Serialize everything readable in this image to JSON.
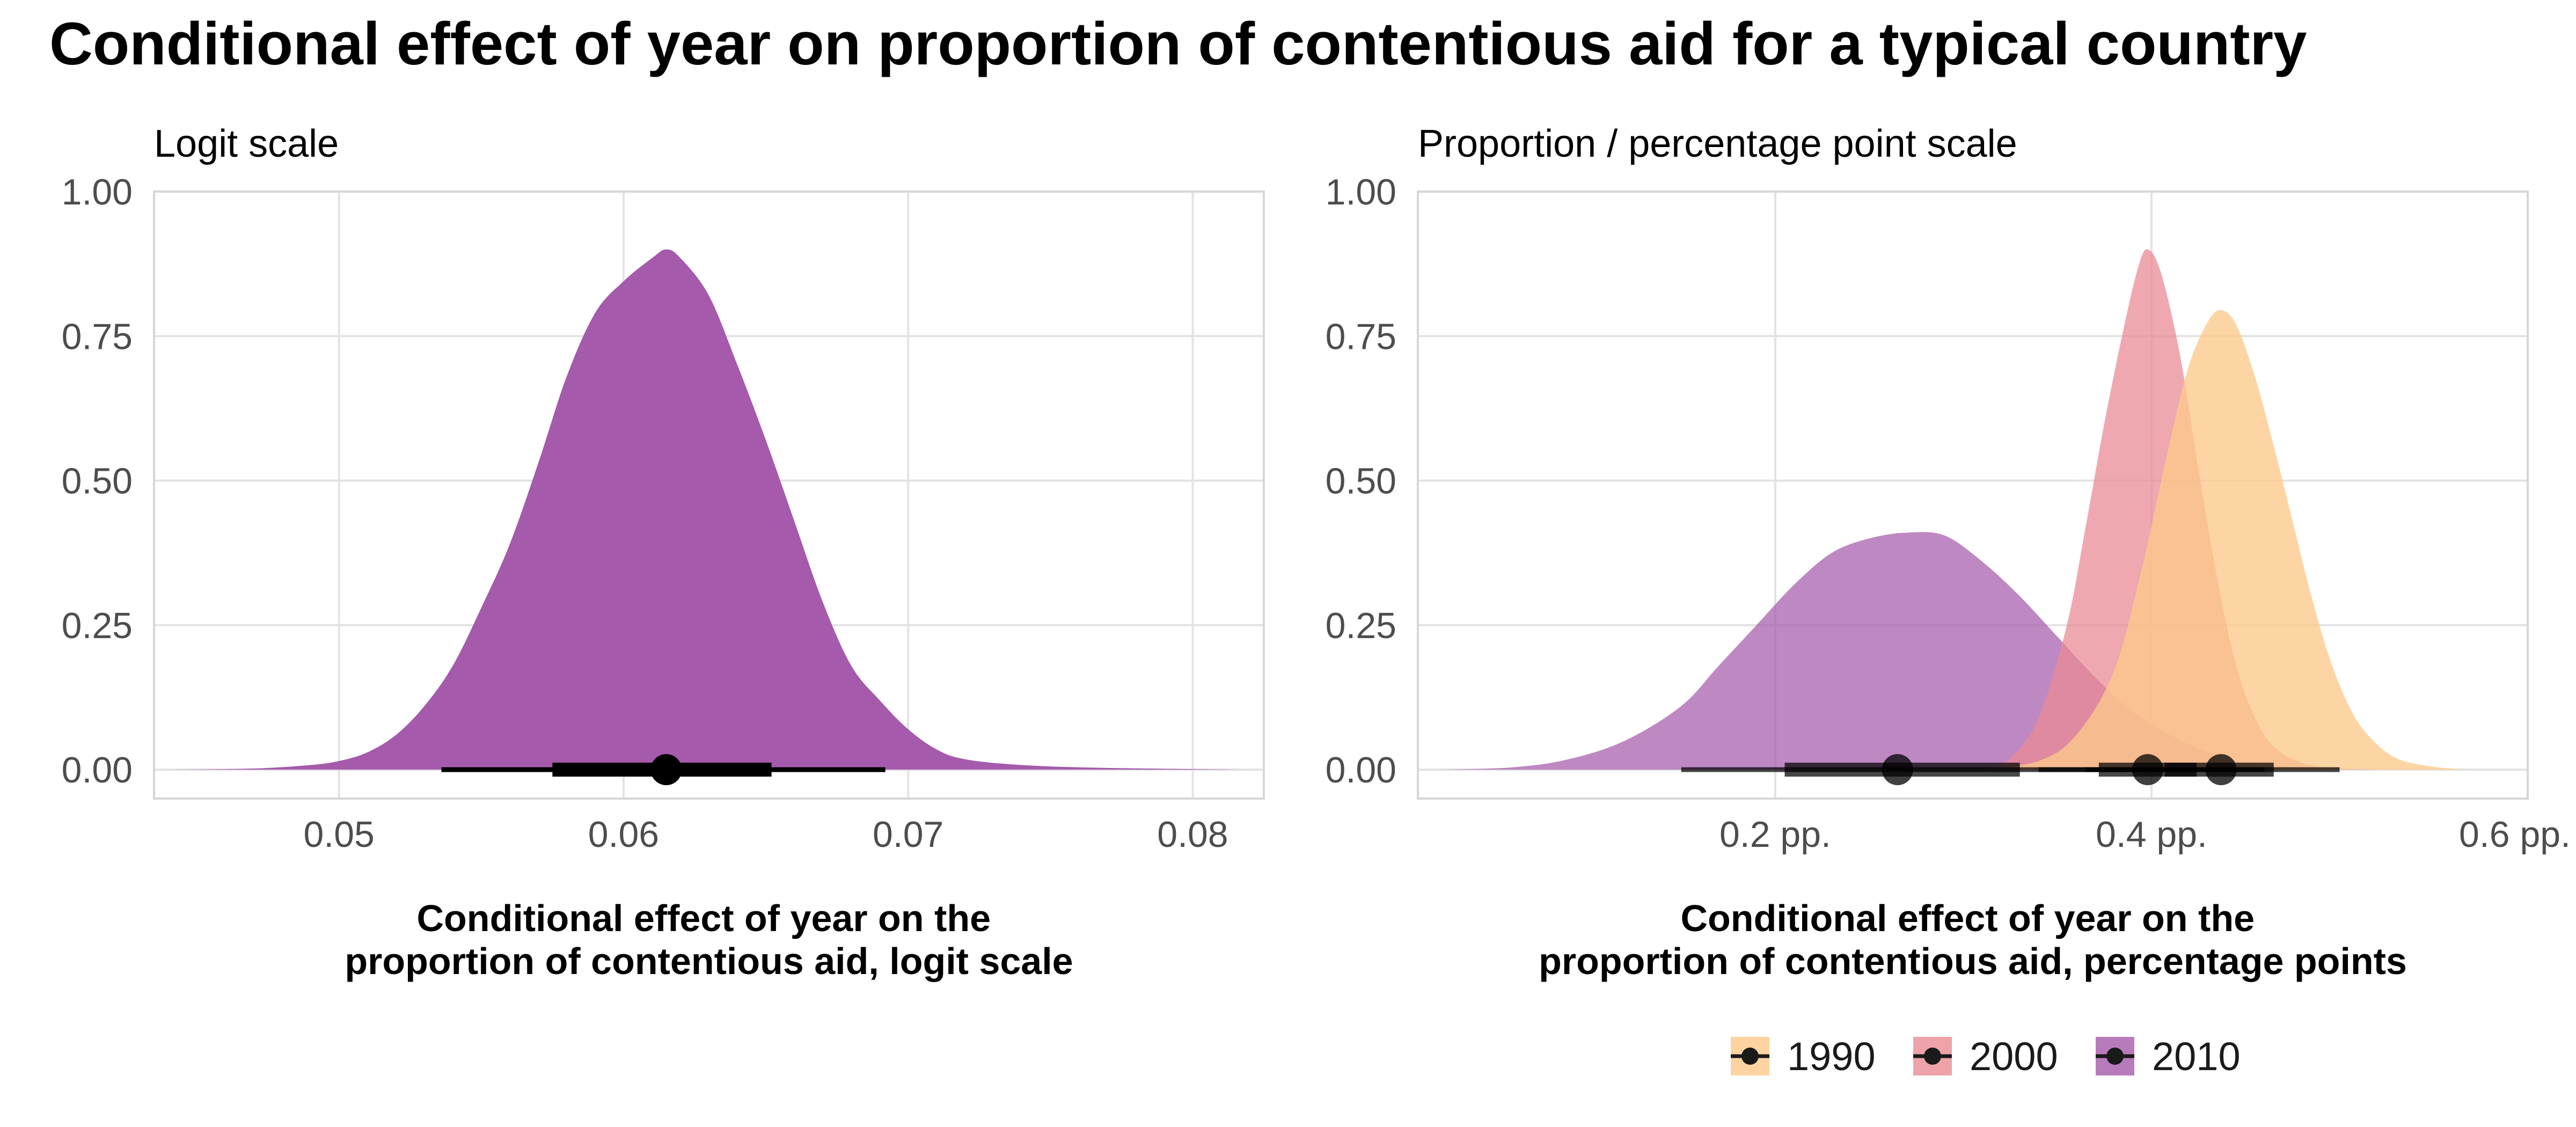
{
  "title": "Conditional effect of year on proportion of contentious aid for a typical country",
  "chart_data": [
    {
      "type": "area",
      "subtitle": "Logit scale",
      "xlabel_lines": [
        "Conditional effect of year on the",
        "proportion of contentious aid, logit scale"
      ],
      "xlim": [
        0.0435,
        0.0825
      ],
      "ylim": [
        -0.05,
        1.0
      ],
      "x_ticks": [
        0.05,
        0.06,
        0.07,
        0.08
      ],
      "x_tick_labels": [
        "0.05",
        "0.06",
        "0.07",
        "0.08"
      ],
      "y_ticks": [
        0,
        0.25,
        0.5,
        0.75,
        1.0
      ],
      "y_tick_labels": [
        "0.00",
        "0.25",
        "0.50",
        "0.75",
        "1.00"
      ],
      "grid": true,
      "series": [
        {
          "key": "logit",
          "color": "#a55aab",
          "opacity": 1.0,
          "density": [
            [
              0.044,
              0
            ],
            [
              0.047,
              0.002
            ],
            [
              0.049,
              0.008
            ],
            [
              0.05,
              0.015
            ],
            [
              0.051,
              0.03
            ],
            [
              0.052,
              0.06
            ],
            [
              0.053,
              0.11
            ],
            [
              0.054,
              0.18
            ],
            [
              0.055,
              0.28
            ],
            [
              0.056,
              0.39
            ],
            [
              0.057,
              0.53
            ],
            [
              0.058,
              0.68
            ],
            [
              0.059,
              0.79
            ],
            [
              0.06,
              0.845
            ],
            [
              0.061,
              0.885
            ],
            [
              0.0615,
              0.9
            ],
            [
              0.062,
              0.885
            ],
            [
              0.063,
              0.82
            ],
            [
              0.064,
              0.7
            ],
            [
              0.065,
              0.57
            ],
            [
              0.066,
              0.43
            ],
            [
              0.067,
              0.29
            ],
            [
              0.068,
              0.18
            ],
            [
              0.069,
              0.12
            ],
            [
              0.07,
              0.07
            ],
            [
              0.071,
              0.035
            ],
            [
              0.072,
              0.018
            ],
            [
              0.074,
              0.008
            ],
            [
              0.077,
              0.003
            ],
            [
              0.082,
              0
            ]
          ],
          "median": 0.0615,
          "interval_66": [
            0.0575,
            0.0652
          ],
          "interval_95": [
            0.0536,
            0.0692
          ]
        }
      ]
    },
    {
      "type": "area",
      "subtitle": "Proportion / percentage point scale",
      "xlabel_lines": [
        "Conditional effect of year on the",
        "proportion of contentious aid, percentage points"
      ],
      "xlim": [
        0.01,
        0.6
      ],
      "ylim": [
        -0.05,
        1.0
      ],
      "x_ticks": [
        0.2,
        0.4,
        0.6
      ],
      "x_tick_labels": [
        "0.2 pp.",
        "0.4 pp.",
        "0.6 pp."
      ],
      "y_ticks": [
        0,
        0.25,
        0.5,
        0.75,
        1.0
      ],
      "y_tick_labels": [
        "0.00",
        "0.25",
        "0.50",
        "0.75",
        "1.00"
      ],
      "grid": true,
      "series": [
        {
          "key": "2010",
          "color": "#a55aab",
          "opacity": 0.72,
          "density": [
            [
              0.02,
              0
            ],
            [
              0.06,
              0.004
            ],
            [
              0.09,
              0.018
            ],
            [
              0.12,
              0.05
            ],
            [
              0.15,
              0.11
            ],
            [
              0.17,
              0.18
            ],
            [
              0.19,
              0.25
            ],
            [
              0.21,
              0.32
            ],
            [
              0.23,
              0.375
            ],
            [
              0.25,
              0.4
            ],
            [
              0.27,
              0.41
            ],
            [
              0.29,
              0.405
            ],
            [
              0.31,
              0.36
            ],
            [
              0.33,
              0.3
            ],
            [
              0.35,
              0.23
            ],
            [
              0.37,
              0.16
            ],
            [
              0.39,
              0.1
            ],
            [
              0.41,
              0.06
            ],
            [
              0.43,
              0.03
            ],
            [
              0.45,
              0.012
            ],
            [
              0.48,
              0.004
            ],
            [
              0.52,
              0
            ]
          ],
          "median": 0.265,
          "interval_66": [
            0.205,
            0.33
          ],
          "interval_95": [
            0.15,
            0.385
          ]
        },
        {
          "key": "2000",
          "color": "#ea8b95",
          "opacity": 0.75,
          "density": [
            [
              0.31,
              0
            ],
            [
              0.325,
              0.02
            ],
            [
              0.34,
              0.09
            ],
            [
              0.355,
              0.25
            ],
            [
              0.365,
              0.42
            ],
            [
              0.375,
              0.6
            ],
            [
              0.385,
              0.76
            ],
            [
              0.393,
              0.87
            ],
            [
              0.398,
              0.9
            ],
            [
              0.405,
              0.86
            ],
            [
              0.415,
              0.72
            ],
            [
              0.425,
              0.52
            ],
            [
              0.435,
              0.33
            ],
            [
              0.445,
              0.18
            ],
            [
              0.455,
              0.09
            ],
            [
              0.465,
              0.04
            ],
            [
              0.48,
              0.012
            ],
            [
              0.5,
              0
            ]
          ],
          "median": 0.398,
          "interval_66": [
            0.372,
            0.424
          ],
          "interval_95": [
            0.34,
            0.46
          ]
        },
        {
          "key": "1990",
          "color": "#fcc98a",
          "opacity": 0.78,
          "density": [
            [
              0.31,
              0
            ],
            [
              0.34,
              0.015
            ],
            [
              0.36,
              0.06
            ],
            [
              0.38,
              0.17
            ],
            [
              0.395,
              0.35
            ],
            [
              0.41,
              0.57
            ],
            [
              0.42,
              0.7
            ],
            [
              0.43,
              0.775
            ],
            [
              0.437,
              0.795
            ],
            [
              0.445,
              0.77
            ],
            [
              0.455,
              0.68
            ],
            [
              0.465,
              0.56
            ],
            [
              0.475,
              0.43
            ],
            [
              0.485,
              0.3
            ],
            [
              0.495,
              0.19
            ],
            [
              0.505,
              0.11
            ],
            [
              0.515,
              0.06
            ],
            [
              0.53,
              0.02
            ],
            [
              0.55,
              0.005
            ],
            [
              0.57,
              0
            ]
          ],
          "median": 0.437,
          "interval_66": [
            0.407,
            0.465
          ],
          "interval_95": [
            0.365,
            0.5
          ]
        }
      ]
    }
  ],
  "legend": {
    "placement": "bottom",
    "items": [
      {
        "label": "1990",
        "color": "#fcc98a"
      },
      {
        "label": "2000",
        "color": "#ea8b95"
      },
      {
        "label": "2010",
        "color": "#a55aab"
      }
    ]
  }
}
